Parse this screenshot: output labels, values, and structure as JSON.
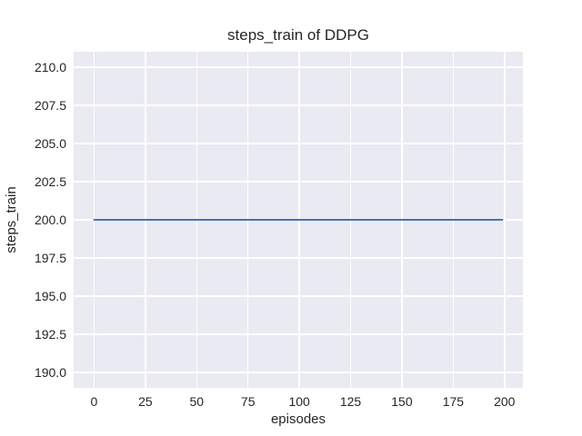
{
  "chart_data": {
    "type": "line",
    "title": "steps_train of DDPG",
    "xlabel": "episodes",
    "ylabel": "steps_train",
    "xlim": [
      -9.95,
      208.95
    ],
    "ylim": [
      189,
      211
    ],
    "xticks": [
      0,
      25,
      50,
      75,
      100,
      125,
      150,
      175,
      200
    ],
    "xtick_labels": [
      "0",
      "25",
      "50",
      "75",
      "100",
      "125",
      "150",
      "175",
      "200"
    ],
    "yticks": [
      190,
      192.5,
      195,
      197.5,
      200,
      202.5,
      205,
      207.5,
      210
    ],
    "ytick_labels": [
      "190.0",
      "192.5",
      "195.0",
      "197.5",
      "200.0",
      "202.5",
      "205.0",
      "207.5",
      "210.0"
    ],
    "grid": true,
    "legend_visible": false,
    "plot_background_color": "#eaeaf2",
    "grid_color": "#ffffff",
    "text_color": "#262626",
    "series": [
      {
        "name": "steps_train",
        "color": "#4c72b0",
        "linewidth": 2,
        "x": [
          0,
          199
        ],
        "y": [
          200,
          200
        ]
      }
    ]
  }
}
